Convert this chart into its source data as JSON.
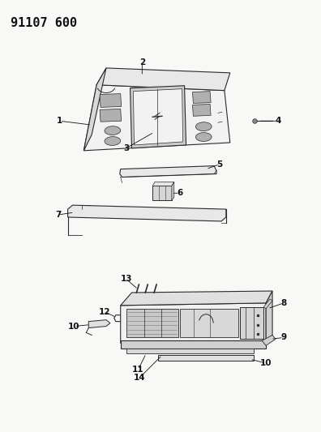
{
  "title": "91107 600",
  "bg": "#f8f8f6",
  "lc": "#2a2a2a",
  "tc": "#111111",
  "title_fs": 11,
  "label_fs": 7.5,
  "fig_w": 3.96,
  "fig_h": 5.33
}
